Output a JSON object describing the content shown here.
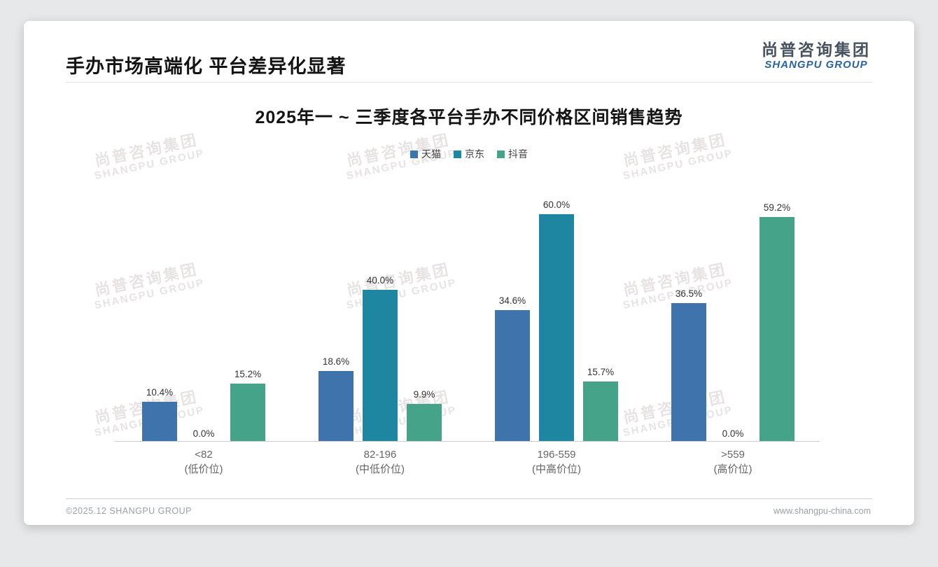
{
  "header": {
    "title": "手办市场高端化 平台差异化显著",
    "logo_cn": "尚普咨询集团",
    "logo_en": "SHANGPU GROUP"
  },
  "watermark": {
    "cn": "尚普咨询集团",
    "en": "SHANGPU GROUP"
  },
  "footer": {
    "left": "©2025.12 SHANGPU GROUP",
    "right": "www.shangpu-china.com"
  },
  "chart_data": {
    "type": "bar",
    "title": "2025年一 ~ 三季度各平台手办不同价格区间销售趋势",
    "categories": [
      {
        "label": "<82",
        "sub": "(低价位)"
      },
      {
        "label": "82-196",
        "sub": "(中低价位)"
      },
      {
        "label": "196-559",
        "sub": "(中高价位)"
      },
      {
        "label": ">559",
        "sub": "(高价位)"
      }
    ],
    "series": [
      {
        "name": "天猫",
        "color": "#3e73ac",
        "values": [
          10.4,
          18.6,
          34.6,
          36.5
        ]
      },
      {
        "name": "京东",
        "color": "#1e86a0",
        "values": [
          0.0,
          40.0,
          60.0,
          0.0
        ]
      },
      {
        "name": "抖音",
        "color": "#45a389",
        "values": [
          15.2,
          9.9,
          15.7,
          59.2
        ]
      }
    ],
    "value_suffix": "%",
    "ylim": [
      0,
      66
    ],
    "grid": false,
    "legend_position": "top",
    "xlabel": "",
    "ylabel": ""
  }
}
